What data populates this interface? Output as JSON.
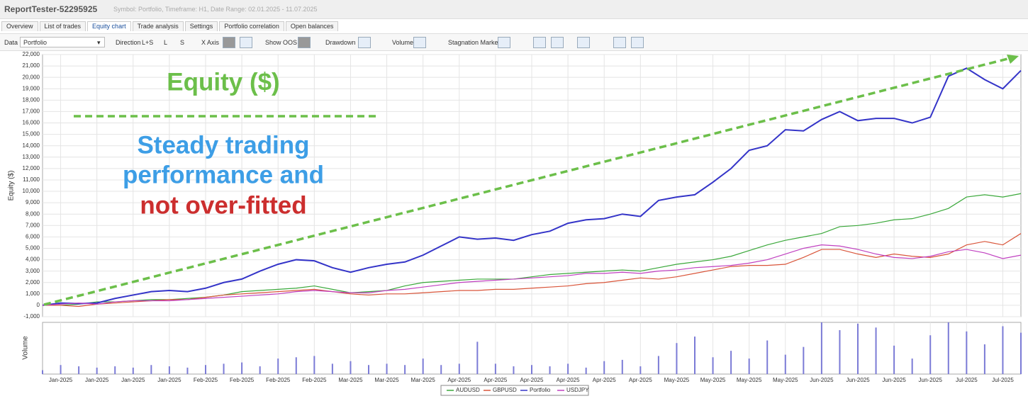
{
  "ui": {
    "window_title": "ReportTester-52295925",
    "window_subtitle": "Symbol: Portfolio, Timeframe: H1, Date Range: 02.01.2025 - 11.07.2025",
    "tabs": [
      "Overview",
      "List of trades",
      "Equity chart",
      "Trade analysis",
      "Settings",
      "Portfolio correlation",
      "Open balances"
    ],
    "active_tab": "Equity chart",
    "toolbar": {
      "data_label": "Data",
      "data_value": "Portfolio",
      "direction_label": "Direction",
      "direction_options": [
        "L+S",
        "L",
        "S"
      ],
      "x_axis_label": "X Axis",
      "show_oos_label": "Show OOS",
      "drawdown_label": "Drawdown",
      "volume_label": "Volume",
      "stagnation_label": "Stagnation Marker"
    }
  },
  "chart_data": [
    {
      "type": "line",
      "y_label": "Equity ($)",
      "xlim": [
        0,
        54
      ],
      "ylim": [
        -1000,
        22000
      ],
      "yticks": [
        {
          "value": -1000,
          "label": "-1,000"
        },
        0,
        {
          "value": 1000,
          "label": "1,000"
        },
        {
          "value": 2000,
          "label": "2,000"
        },
        {
          "value": 3000,
          "label": "3,000"
        },
        {
          "value": 4000,
          "label": "4,000"
        },
        {
          "value": 5000,
          "label": "5,000"
        },
        {
          "value": 6000,
          "label": "6,000"
        },
        {
          "value": 7000,
          "label": "7,000"
        },
        {
          "value": 8000,
          "label": "8,000"
        },
        {
          "value": 9000,
          "label": "9,000"
        },
        {
          "value": 10000,
          "label": "10,000"
        },
        {
          "value": 11000,
          "label": "11,000"
        },
        {
          "value": 12000,
          "label": "12,000"
        },
        {
          "value": 13000,
          "label": "13,000"
        },
        {
          "value": 14000,
          "label": "14,000"
        },
        {
          "value": 15000,
          "label": "15,000"
        },
        {
          "value": 16000,
          "label": "16,000"
        },
        {
          "value": 17000,
          "label": "17,000"
        },
        {
          "value": 18000,
          "label": "18,000"
        },
        {
          "value": 19000,
          "label": "19,000"
        },
        {
          "value": 20000,
          "label": "20,000"
        },
        {
          "value": 21000,
          "label": "21,000"
        },
        {
          "value": 22000,
          "label": "22,000"
        }
      ],
      "grid": true,
      "series": [
        {
          "name": "AUDUSD",
          "color": "#3aa83a",
          "values": [
            0,
            0,
            100,
            300,
            300,
            400,
            500,
            500,
            600,
            700,
            900,
            1200,
            1300,
            1400,
            1500,
            1700,
            1400,
            1100,
            1200,
            1300,
            1700,
            2000,
            2100,
            2200,
            2300,
            2300,
            2300,
            2500,
            2700,
            2800,
            2900,
            3000,
            3100,
            3000,
            3300,
            3600,
            3800,
            4000,
            4300,
            4800,
            5300,
            5700,
            6000,
            6300,
            6900,
            7000,
            7200,
            7500,
            7600,
            8000,
            8500,
            9500,
            9700,
            9500,
            9800
          ]
        },
        {
          "name": "GBPUSD",
          "color": "#d9553a",
          "values": [
            0,
            0,
            -100,
            100,
            200,
            300,
            400,
            500,
            500,
            700,
            900,
            1000,
            1100,
            1200,
            1300,
            1400,
            1200,
            1000,
            900,
            1000,
            1000,
            1100,
            1200,
            1300,
            1300,
            1400,
            1400,
            1500,
            1600,
            1700,
            1900,
            2000,
            2200,
            2400,
            2300,
            2500,
            2800,
            3100,
            3400,
            3500,
            3500,
            3600,
            4200,
            4900,
            4900,
            4500,
            4200,
            4500,
            4300,
            4200,
            4500,
            5300,
            5600,
            5300,
            6300
          ]
        },
        {
          "name": "Portfolio",
          "color": "#3434c8",
          "values": [
            0,
            200,
            150,
            200,
            600,
            900,
            1200,
            1300,
            1200,
            1500,
            2000,
            2300,
            3000,
            3600,
            4000,
            3900,
            3300,
            2900,
            3300,
            3600,
            3800,
            4400,
            5200,
            6000,
            5800,
            5900,
            5700,
            6200,
            6500,
            7200,
            7500,
            7600,
            8000,
            7800,
            9200,
            9500,
            9700,
            10800,
            12000,
            13600,
            14000,
            15400,
            15300,
            16300,
            17000,
            16200,
            16400,
            16400,
            16000,
            16500,
            20100,
            20800,
            19800,
            19000,
            20600
          ]
        },
        {
          "name": "USDJPY",
          "color": "#c040c0",
          "values": [
            0,
            100,
            200,
            100,
            300,
            400,
            400,
            400,
            500,
            600,
            700,
            800,
            900,
            1000,
            1200,
            1300,
            1200,
            1100,
            1100,
            1300,
            1400,
            1600,
            1800,
            2000,
            2100,
            2200,
            2300,
            2400,
            2500,
            2600,
            2800,
            2800,
            2900,
            2800,
            3000,
            3100,
            3300,
            3400,
            3500,
            3700,
            4000,
            4500,
            5000,
            5300,
            5200,
            4900,
            4500,
            4200,
            4100,
            4300,
            4700,
            4900,
            4600,
            4100,
            4400
          ]
        }
      ],
      "legend": "bottom",
      "annotations": [
        {
          "text": "Equity ($)",
          "color": "#6cbf4a"
        },
        {
          "text": "Steady trading",
          "color": "#3d9ee6"
        },
        {
          "text": "performance and",
          "color": "#3d9ee6"
        },
        {
          "text": "not over-fitted",
          "color": "#cc2e2e"
        }
      ]
    },
    {
      "type": "bar",
      "y_label": "Volume",
      "color": "#7b7bd6",
      "xlim": [
        0,
        54
      ],
      "ylim": [
        0,
        4
      ],
      "values": [
        0.3,
        0.7,
        0.6,
        0.5,
        0.6,
        0.5,
        0.7,
        0.6,
        0.5,
        0.7,
        0.8,
        0.9,
        0.6,
        1.2,
        1.3,
        1.4,
        0.8,
        1.0,
        0.7,
        0.8,
        0.7,
        1.2,
        0.7,
        0.8,
        2.5,
        0.8,
        0.6,
        0.7,
        0.6,
        0.8,
        0.5,
        1.0,
        1.1,
        0.6,
        1.4,
        2.4,
        2.9,
        1.3,
        1.8,
        1.2,
        2.6,
        1.5,
        2.1,
        4.0,
        3.4,
        3.9,
        3.6,
        2.2,
        1.2,
        3.0,
        4.0,
        3.3,
        2.3,
        3.7,
        3.2
      ],
      "xticks": [
        {
          "value": 1,
          "label": "Jan-2025"
        },
        {
          "value": 3,
          "label": "Jan-2025"
        },
        {
          "value": 5,
          "label": "Jan-2025"
        },
        {
          "value": 7,
          "label": "Jan-2025"
        },
        {
          "value": 9,
          "label": "Feb-2025"
        },
        {
          "value": 11,
          "label": "Feb-2025"
        },
        {
          "value": 13,
          "label": "Feb-2025"
        },
        {
          "value": 15,
          "label": "Feb-2025"
        },
        {
          "value": 17,
          "label": "Mar-2025"
        },
        {
          "value": 19,
          "label": "Mar-2025"
        },
        {
          "value": 21,
          "label": "Mar-2025"
        },
        {
          "value": 23,
          "label": "Apr-2025"
        },
        {
          "value": 25,
          "label": "Apr-2025"
        },
        {
          "value": 27,
          "label": "Apr-2025"
        },
        {
          "value": 29,
          "label": "Apr-2025"
        },
        {
          "value": 31,
          "label": "Apr-2025"
        },
        {
          "value": 33,
          "label": "Apr-2025"
        },
        {
          "value": 35,
          "label": "May-2025"
        },
        {
          "value": 37,
          "label": "May-2025"
        },
        {
          "value": 39,
          "label": "May-2025"
        },
        {
          "value": 41,
          "label": "May-2025"
        },
        {
          "value": 43,
          "label": "Jun-2025"
        },
        {
          "value": 45,
          "label": "Jun-2025"
        },
        {
          "value": 47,
          "label": "Jun-2025"
        },
        {
          "value": 49,
          "label": "Jun-2025"
        },
        {
          "value": 51,
          "label": "Jul-2025"
        },
        {
          "value": 53,
          "label": "Jul-2025"
        }
      ],
      "grid": true
    }
  ]
}
